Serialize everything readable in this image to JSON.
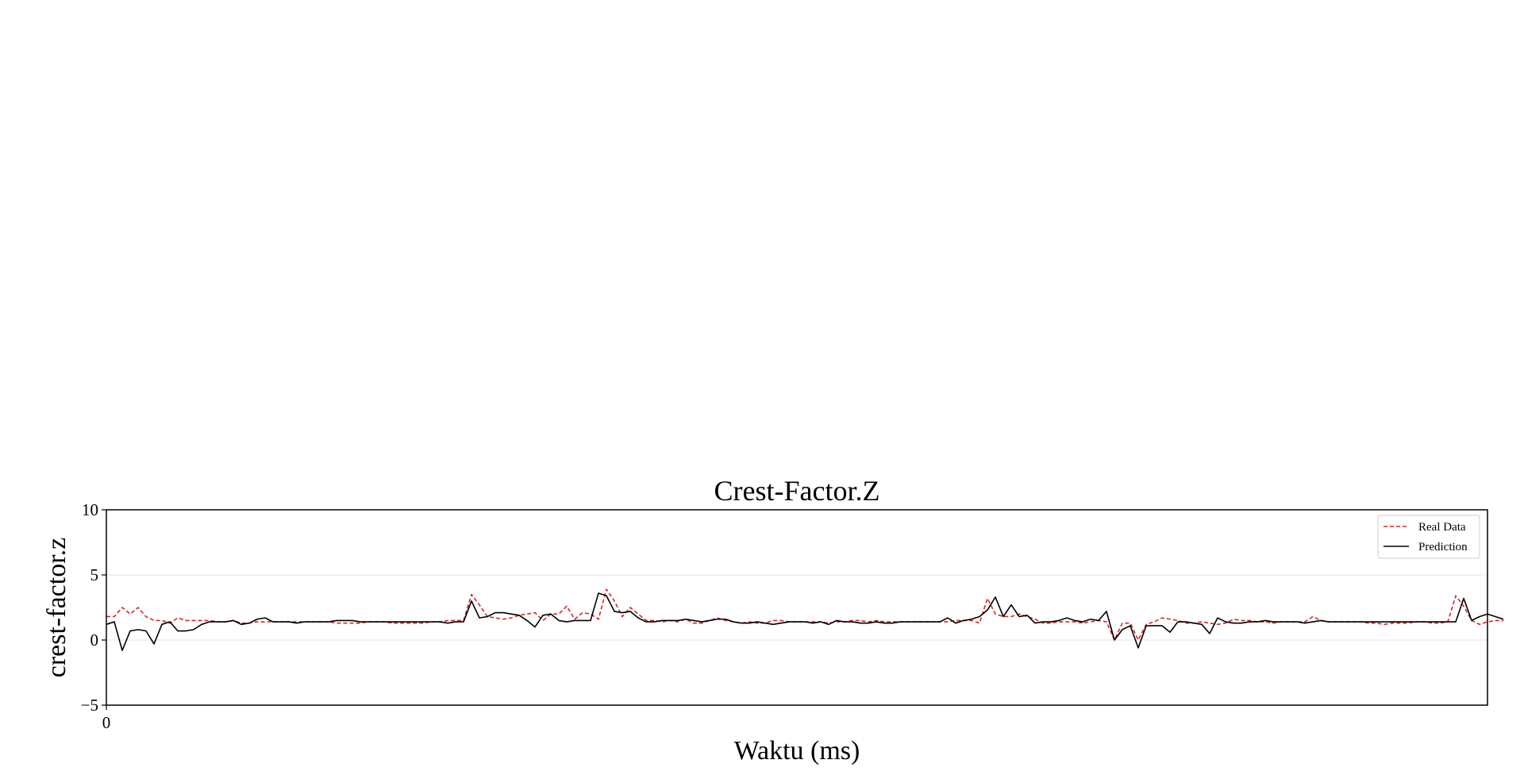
{
  "chart_data": {
    "type": "line",
    "title": "Crest-Factor.Z",
    "xlabel": "Waktu (ms)",
    "ylabel": "crest-factor.z",
    "xlim": [
      0,
      174
    ],
    "ylim": [
      -5,
      10
    ],
    "x_ticks": [
      0
    ],
    "y_ticks": [
      -5,
      0,
      5,
      10
    ],
    "grid": "horizontal",
    "legend_position": "top-right",
    "series": [
      {
        "name": "Real Data",
        "color": "#d62728",
        "line_style": "dashed",
        "values": [
          1.8,
          1.8,
          2.5,
          2.0,
          2.5,
          1.8,
          1.5,
          1.5,
          1.3,
          1.7,
          1.5,
          1.5,
          1.5,
          1.5,
          1.4,
          1.4,
          1.5,
          1.3,
          1.3,
          1.4,
          1.4,
          1.4,
          1.4,
          1.4,
          1.4,
          1.4,
          1.4,
          1.4,
          1.4,
          1.3,
          1.3,
          1.3,
          1.3,
          1.4,
          1.4,
          1.4,
          1.3,
          1.3,
          1.3,
          1.3,
          1.3,
          1.4,
          1.4,
          1.5,
          1.5,
          1.5,
          3.5,
          2.7,
          1.8,
          1.7,
          1.6,
          1.7,
          1.9,
          2.0,
          2.1,
          1.5,
          2.0,
          2.0,
          2.6,
          1.6,
          2.1,
          2.0,
          1.6,
          3.9,
          3.0,
          1.8,
          2.5,
          2.0,
          1.5,
          1.5,
          1.4,
          1.5,
          1.4,
          1.6,
          1.3,
          1.3,
          1.5,
          1.7,
          1.5,
          1.4,
          1.3,
          1.4,
          1.3,
          1.3,
          1.5,
          1.5,
          1.4,
          1.4,
          1.4,
          1.4,
          1.4,
          1.3,
          1.4,
          1.4,
          1.5,
          1.5,
          1.4,
          1.5,
          1.4,
          1.4,
          1.4,
          1.4,
          1.4,
          1.4,
          1.4,
          1.4,
          1.4,
          1.5,
          1.5,
          1.5,
          1.3,
          3.2,
          2.0,
          1.8,
          1.8,
          2.0,
          1.8,
          1.6,
          1.3,
          1.3,
          1.4,
          1.4,
          1.4,
          1.3,
          1.4,
          1.5,
          1.4,
          0.0,
          1.3,
          1.3,
          0.0,
          1.2,
          1.4,
          1.7,
          1.6,
          1.5,
          1.3,
          1.3,
          1.4,
          1.3,
          1.2,
          1.3,
          1.6,
          1.5,
          1.5,
          1.4,
          1.4,
          1.3,
          1.4,
          1.4,
          1.4,
          1.4,
          1.8,
          1.5,
          1.4,
          1.4,
          1.4,
          1.4,
          1.4,
          1.3,
          1.3,
          1.2,
          1.3,
          1.3,
          1.3,
          1.4,
          1.4,
          1.3,
          1.3,
          1.4,
          3.4,
          2.6,
          1.5,
          1.2,
          1.4,
          1.5,
          1.5
        ]
      },
      {
        "name": "Prediction",
        "color": "#000000",
        "line_style": "solid",
        "values": [
          1.2,
          1.4,
          -0.8,
          0.7,
          0.8,
          0.7,
          -0.3,
          1.2,
          1.4,
          0.7,
          0.7,
          0.8,
          1.2,
          1.4,
          1.4,
          1.4,
          1.5,
          1.2,
          1.3,
          1.6,
          1.7,
          1.4,
          1.4,
          1.4,
          1.3,
          1.4,
          1.4,
          1.4,
          1.4,
          1.5,
          1.5,
          1.5,
          1.4,
          1.4,
          1.4,
          1.4,
          1.4,
          1.4,
          1.4,
          1.4,
          1.4,
          1.4,
          1.4,
          1.3,
          1.4,
          1.4,
          3.0,
          1.7,
          1.8,
          2.1,
          2.1,
          2.0,
          1.9,
          1.5,
          1.0,
          1.9,
          2.0,
          1.5,
          1.4,
          1.5,
          1.5,
          1.5,
          3.6,
          3.4,
          2.2,
          2.1,
          2.2,
          1.7,
          1.4,
          1.4,
          1.5,
          1.5,
          1.5,
          1.6,
          1.5,
          1.4,
          1.5,
          1.6,
          1.6,
          1.4,
          1.3,
          1.3,
          1.4,
          1.3,
          1.2,
          1.3,
          1.4,
          1.4,
          1.4,
          1.3,
          1.4,
          1.2,
          1.5,
          1.4,
          1.4,
          1.3,
          1.3,
          1.4,
          1.3,
          1.3,
          1.4,
          1.4,
          1.4,
          1.4,
          1.4,
          1.4,
          1.7,
          1.3,
          1.5,
          1.6,
          1.8,
          2.3,
          3.3,
          1.8,
          2.7,
          1.8,
          1.9,
          1.3,
          1.4,
          1.4,
          1.5,
          1.7,
          1.5,
          1.4,
          1.6,
          1.5,
          2.2,
          0.0,
          0.8,
          1.1,
          -0.6,
          1.1,
          1.1,
          1.1,
          0.6,
          1.4,
          1.4,
          1.3,
          1.2,
          0.5,
          1.7,
          1.4,
          1.3,
          1.3,
          1.4,
          1.4,
          1.5,
          1.4,
          1.4,
          1.4,
          1.4,
          1.3,
          1.4,
          1.5,
          1.4,
          1.4,
          1.4,
          1.4,
          1.4,
          1.4,
          1.4,
          1.4,
          1.4,
          1.4,
          1.4,
          1.4,
          1.4,
          1.4,
          1.4,
          1.4,
          1.4,
          3.2,
          1.5,
          1.8,
          2.0,
          1.8,
          1.6
        ]
      }
    ]
  }
}
